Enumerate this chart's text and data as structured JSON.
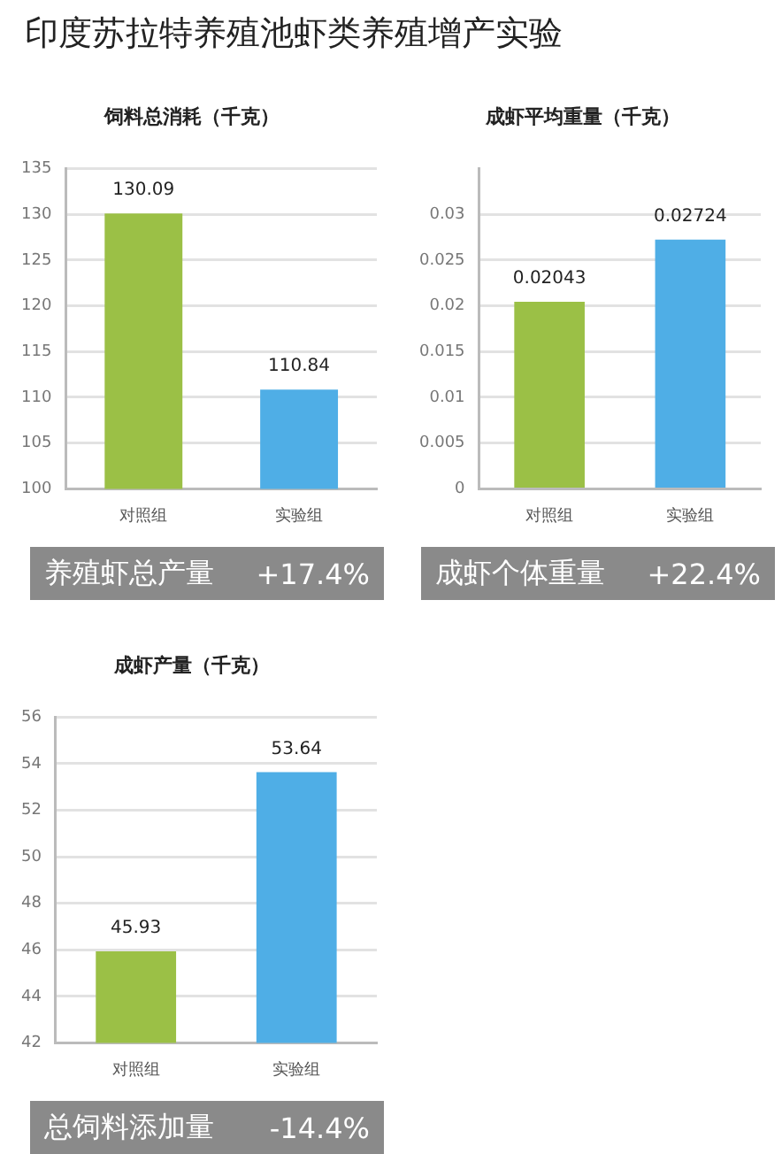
{
  "chart_data": [
    {
      "type": "other",
      "title": "印度苏拉特养殖池虾类养殖增产实验"
    },
    {
      "type": "bar",
      "title": "饲料总消耗（千克）",
      "categories": [
        "对照组",
        "实验组"
      ],
      "values": [
        130.09,
        110.84
      ],
      "colors": [
        "#9bc046",
        "#4faee6"
      ],
      "ylim": [
        100,
        135
      ],
      "yticks": [
        100,
        105,
        110,
        115,
        120,
        125,
        130,
        135
      ],
      "grid": "y",
      "data_labels": true,
      "annotations": [
        "养殖虾总产量",
        "+17.4%"
      ]
    },
    {
      "type": "bar",
      "title": "成虾平均重量（千克）",
      "categories": [
        "对照组",
        "实验组"
      ],
      "values": [
        0.02043,
        0.02724
      ],
      "colors": [
        "#9bc046",
        "#4faee6"
      ],
      "ylim": [
        0,
        0.035
      ],
      "yticks": [
        0,
        0.005,
        0.01,
        0.015,
        0.02,
        0.025,
        0.03
      ],
      "grid": "y",
      "data_labels": true,
      "annotations": [
        "成虾个体重量",
        "+22.4%"
      ]
    },
    {
      "type": "bar",
      "title": "成虾产量（千克）",
      "categories": [
        "对照组",
        "实验组"
      ],
      "values": [
        45.93,
        53.64
      ],
      "colors": [
        "#9bc046",
        "#4faee6"
      ],
      "ylim": [
        42,
        56
      ],
      "yticks": [
        42,
        44,
        46,
        48,
        50,
        52,
        54,
        56
      ],
      "grid": "y",
      "data_labels": true,
      "annotations": [
        "总饲料添加量",
        "-14.4%"
      ]
    }
  ]
}
